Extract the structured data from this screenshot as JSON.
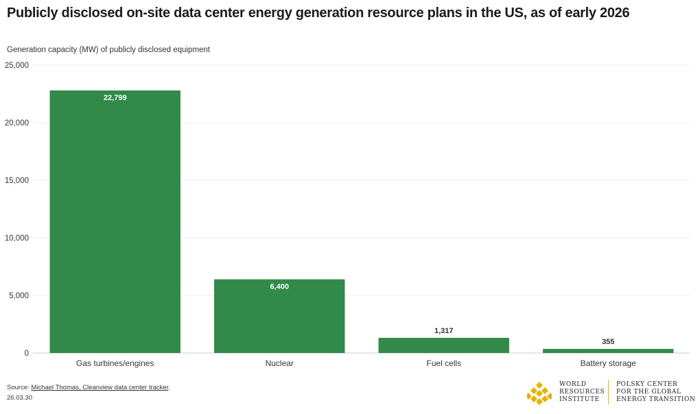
{
  "title": "Publicly disclosed on-site data center energy generation resource plans in the US, as of early 2026",
  "source": {
    "prefix": "Source: ",
    "link_text": "Michael Thomas, Cleanview data center tracker",
    "suffix": ".",
    "date": "26.03.30"
  },
  "logo": {
    "mark_icon": "wri-diamond-lattice-icon",
    "wri_lines": [
      "WORLD",
      "RESOURCES",
      "INSTITUTE"
    ],
    "polsky_lines": [
      "POLSKY CENTER",
      "FOR THE GLOBAL",
      "ENERGY TRANSITION"
    ],
    "accent_color": "#e8b100"
  },
  "chart_data": {
    "type": "bar",
    "title": "Publicly disclosed on-site data center energy generation resource plans in the US, as of early 2026",
    "ylabel": "Generation capacity (MW) of publicly disclosed equipment",
    "xlabel": "",
    "categories": [
      "Gas turbines/engines",
      "Nuclear",
      "Fuel cells",
      "Battery storage"
    ],
    "values": [
      22799,
      6400,
      1317,
      355
    ],
    "value_labels": [
      "22,799",
      "6,400",
      "1,317",
      "355"
    ],
    "ylim": [
      0,
      25000
    ],
    "yticks": [
      0,
      5000,
      10000,
      15000,
      20000,
      25000
    ],
    "ytick_labels": [
      "0",
      "5,000",
      "10,000",
      "15,000",
      "20,000",
      "25,000"
    ],
    "grid": true,
    "legend": "none",
    "bar_color": "#318a49",
    "label_inside_color": "#ffffff",
    "label_outside_color": "#333333"
  }
}
